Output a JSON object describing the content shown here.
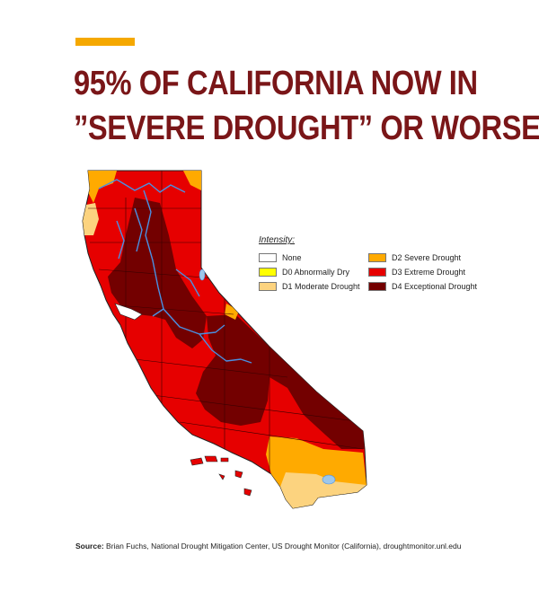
{
  "headline": {
    "line1": "95% of California now in",
    "line2": "”Severe Drought” or Worse"
  },
  "legend": {
    "title": "Intensity:",
    "items": [
      {
        "label": "None",
        "color": "#ffffff"
      },
      {
        "label": "D0 Abnormally Dry",
        "color": "#ffff00"
      },
      {
        "label": "D1 Moderate Drought",
        "color": "#fcd37f"
      },
      {
        "label": "D2 Severe Drought",
        "color": "#ffaa00"
      },
      {
        "label": "D3 Extreme Drought",
        "color": "#e60000"
      },
      {
        "label": "D4 Exceptional Drought",
        "color": "#730000"
      }
    ]
  },
  "source": {
    "label": "Source:",
    "text": "Brian Fuchs, National Drought Mitigation Center, US Drought Monitor (California), droughtmonitor.unl.edu"
  },
  "colors": {
    "accent": "#f5a800",
    "headline": "#7a1618",
    "rivers": "#4a90e2",
    "lakes": "#9ec7ea"
  }
}
